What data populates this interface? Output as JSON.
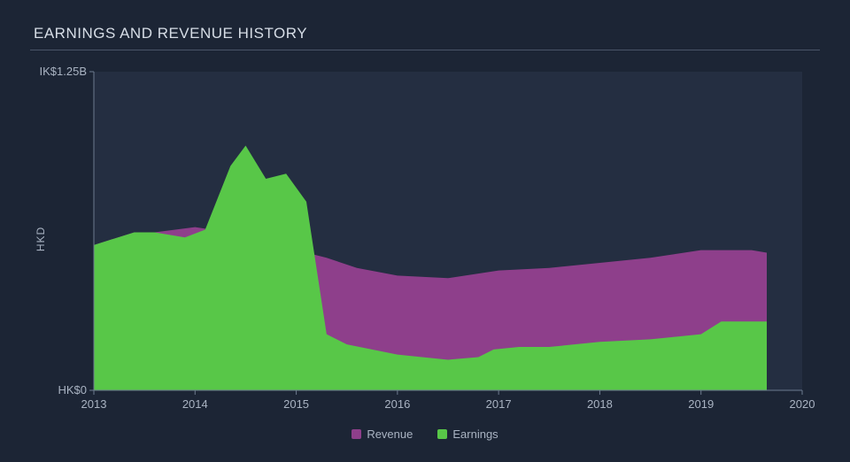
{
  "background_color": "#1c2535",
  "title": "EARNINGS AND REVENUE HISTORY",
  "title_color": "#d6dde6",
  "title_fontsize": 17,
  "underline_color": "#4a5568",
  "ylabel": "HKD",
  "axis_label_color": "#a9b3c2",
  "grid_color": "#3a4556",
  "axis_line_color": "#6d7a8f",
  "tick_font_size": 13,
  "legend_font_size": 13,
  "chart": {
    "type": "area",
    "xlim_years": [
      2013,
      2020
    ],
    "x_ticks": [
      2013,
      2014,
      2015,
      2016,
      2017,
      2018,
      2019,
      2020
    ],
    "ylim": [
      0,
      1.25
    ],
    "y_ticks": [
      {
        "value": 0,
        "label": "HK$0"
      },
      {
        "value": 1.25,
        "label": "IK$1.25B"
      }
    ],
    "plot_background": "#242e41",
    "series": [
      {
        "name": "Revenue",
        "color": "#8e3f8b",
        "legend_label": "Revenue",
        "points": [
          {
            "x": 2013.0,
            "y": 0.57
          },
          {
            "x": 2013.4,
            "y": 0.62
          },
          {
            "x": 2013.6,
            "y": 0.62
          },
          {
            "x": 2014.0,
            "y": 0.64
          },
          {
            "x": 2014.5,
            "y": 0.61
          },
          {
            "x": 2015.0,
            "y": 0.55
          },
          {
            "x": 2015.3,
            "y": 0.52
          },
          {
            "x": 2015.6,
            "y": 0.48
          },
          {
            "x": 2016.0,
            "y": 0.45
          },
          {
            "x": 2016.5,
            "y": 0.44
          },
          {
            "x": 2017.0,
            "y": 0.47
          },
          {
            "x": 2017.5,
            "y": 0.48
          },
          {
            "x": 2018.0,
            "y": 0.5
          },
          {
            "x": 2018.5,
            "y": 0.52
          },
          {
            "x": 2019.0,
            "y": 0.55
          },
          {
            "x": 2019.5,
            "y": 0.55
          },
          {
            "x": 2019.65,
            "y": 0.54
          }
        ]
      },
      {
        "name": "Earnings",
        "color": "#58c748",
        "legend_label": "Earnings",
        "points": [
          {
            "x": 2013.0,
            "y": 0.57
          },
          {
            "x": 2013.4,
            "y": 0.62
          },
          {
            "x": 2013.6,
            "y": 0.62
          },
          {
            "x": 2013.9,
            "y": 0.6
          },
          {
            "x": 2014.1,
            "y": 0.63
          },
          {
            "x": 2014.35,
            "y": 0.88
          },
          {
            "x": 2014.5,
            "y": 0.96
          },
          {
            "x": 2014.7,
            "y": 0.83
          },
          {
            "x": 2014.9,
            "y": 0.85
          },
          {
            "x": 2015.1,
            "y": 0.74
          },
          {
            "x": 2015.3,
            "y": 0.22
          },
          {
            "x": 2015.5,
            "y": 0.18
          },
          {
            "x": 2016.0,
            "y": 0.14
          },
          {
            "x": 2016.5,
            "y": 0.12
          },
          {
            "x": 2016.8,
            "y": 0.13
          },
          {
            "x": 2016.95,
            "y": 0.16
          },
          {
            "x": 2017.2,
            "y": 0.17
          },
          {
            "x": 2017.5,
            "y": 0.17
          },
          {
            "x": 2018.0,
            "y": 0.19
          },
          {
            "x": 2018.5,
            "y": 0.2
          },
          {
            "x": 2019.0,
            "y": 0.22
          },
          {
            "x": 2019.2,
            "y": 0.27
          },
          {
            "x": 2019.5,
            "y": 0.27
          },
          {
            "x": 2019.65,
            "y": 0.27
          }
        ]
      }
    ]
  }
}
